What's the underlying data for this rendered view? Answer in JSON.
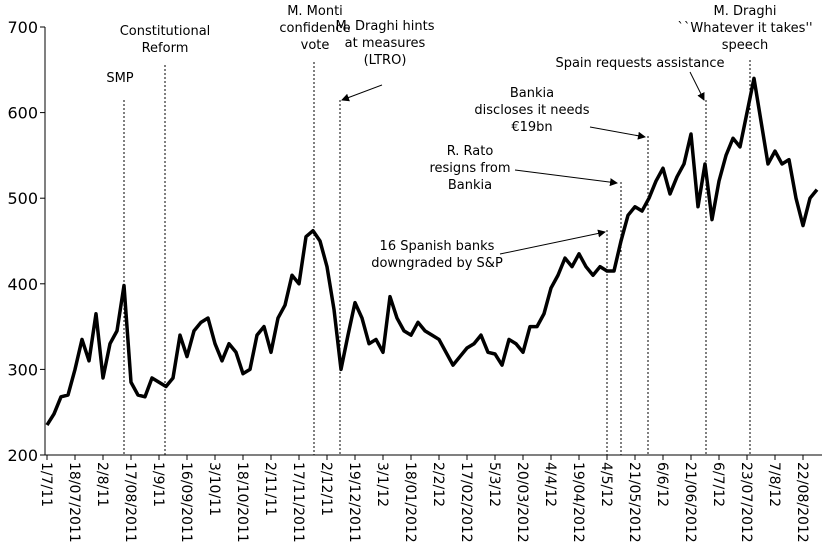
{
  "chart_data": {
    "type": "line",
    "categories": [
      "1/7/11",
      null,
      null,
      null,
      "18/07/2011",
      null,
      null,
      null,
      "2/8/11",
      null,
      null,
      null,
      "17/08/2011",
      null,
      null,
      null,
      "1/9/11",
      null,
      null,
      null,
      "16/09/2011",
      null,
      null,
      null,
      "3/10/11",
      null,
      null,
      null,
      "18/10/2011",
      null,
      null,
      null,
      "2/11/11",
      null,
      null,
      null,
      "17/11/2011",
      null,
      null,
      null,
      "2/12/11",
      null,
      null,
      null,
      "19/12/2011",
      null,
      null,
      null,
      "3/1/12",
      null,
      null,
      null,
      "18/01/2012",
      null,
      null,
      null,
      "2/2/12",
      null,
      null,
      null,
      "17/02/2012",
      null,
      null,
      null,
      "5/3/12",
      null,
      null,
      null,
      "20/03/2012",
      null,
      null,
      null,
      "4/4/12",
      null,
      null,
      null,
      "19/04/2012",
      null,
      null,
      null,
      "4/5/12",
      null,
      null,
      null,
      "21/05/2012",
      null,
      null,
      null,
      "6/6/12",
      null,
      null,
      null,
      "21/06/2012",
      null,
      null,
      null,
      "6/7/12",
      null,
      null,
      null,
      "23/07/2012",
      null,
      null,
      null,
      "7/8/12",
      null,
      null,
      null,
      "22/08/2012",
      null,
      null
    ],
    "series": [
      {
        "name": "Spread",
        "color": "#000000",
        "values": [
          235,
          248,
          268,
          270,
          300,
          335,
          310,
          365,
          290,
          330,
          345,
          398,
          285,
          270,
          268,
          290,
          285,
          280,
          290,
          340,
          315,
          345,
          355,
          360,
          330,
          310,
          330,
          320,
          295,
          300,
          340,
          350,
          320,
          360,
          375,
          410,
          400,
          455,
          462,
          450,
          420,
          370,
          300,
          340,
          378,
          360,
          330,
          335,
          320,
          385,
          360,
          345,
          340,
          355,
          345,
          340,
          335,
          320,
          305,
          315,
          325,
          330,
          340,
          320,
          318,
          305,
          335,
          330,
          320,
          350,
          350,
          365,
          395,
          410,
          430,
          420,
          435,
          420,
          410,
          420,
          415,
          415,
          450,
          480,
          490,
          485,
          500,
          520,
          535,
          505,
          525,
          540,
          575,
          490,
          540,
          475,
          520,
          550,
          570,
          560,
          600,
          640,
          590,
          540,
          555,
          540,
          545,
          500,
          468,
          500,
          510
        ]
      }
    ],
    "ylim": [
      200,
      700
    ],
    "yticks": [
      200,
      300,
      400,
      500,
      600,
      700
    ],
    "annotations": [
      {
        "lines": [
          "SMP"
        ]
      },
      {
        "lines": [
          "Constitutional",
          "Reform"
        ]
      },
      {
        "lines": [
          "M. Monti",
          "confidence",
          "vote"
        ]
      },
      {
        "lines": [
          "M. Draghi hints",
          "at measures",
          "(LTRO)"
        ]
      },
      {
        "lines": [
          "Spain requests assistance"
        ]
      },
      {
        "lines": [
          "Bankia",
          "discloses it needs",
          "€19bn"
        ]
      },
      {
        "lines": [
          "R. Rato",
          "resigns from",
          "Bankia"
        ]
      },
      {
        "lines": [
          "16 Spanish banks",
          "downgraded by S&P"
        ]
      },
      {
        "lines": [
          "M. Draghi",
          "``Whatever it takes''",
          "speech"
        ]
      }
    ]
  }
}
